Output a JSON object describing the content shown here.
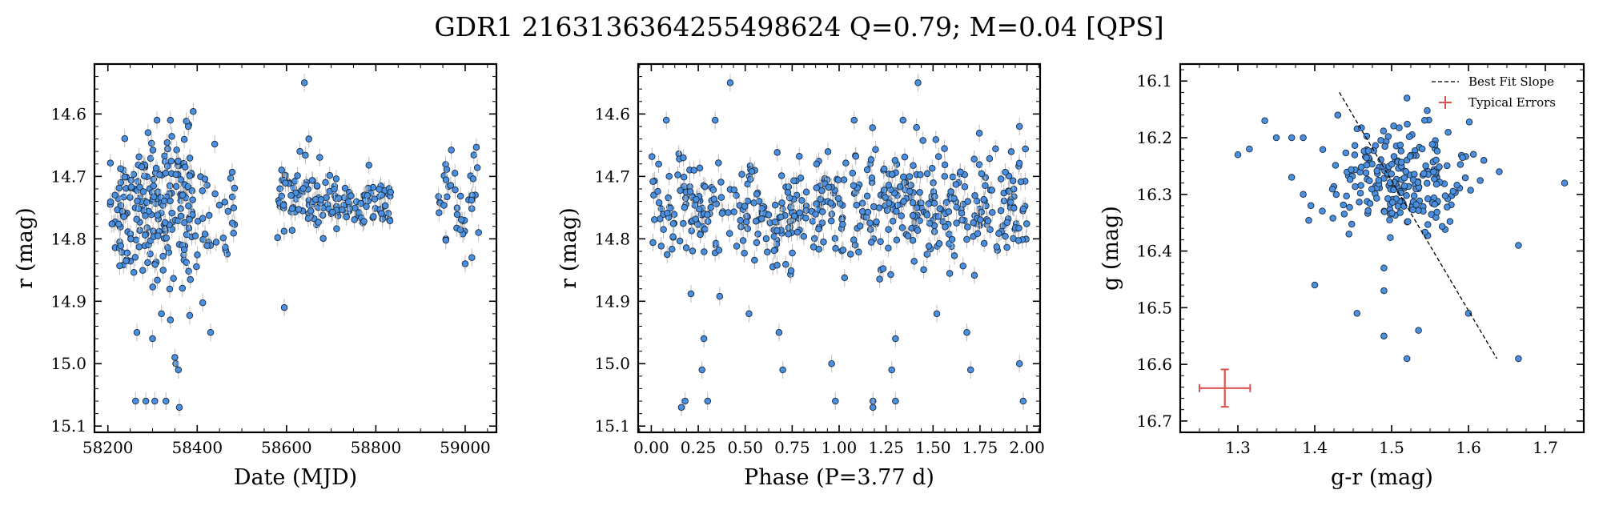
{
  "figure_title": "GDR1 2163136364255498624  Q=0.79; M=0.04 [QPS]",
  "colors": {
    "point": "#4a90e2",
    "point_edge": "#1b2a3a",
    "errorbar": "#bbbbbb",
    "typical_error": "#d9534f",
    "slope": "#000000"
  },
  "chart_data": [
    {
      "type": "scatter",
      "xlabel": "Date (MJD)",
      "ylabel": "r (mag)",
      "xlim": [
        58170,
        59070
      ],
      "ylim": [
        15.11,
        14.52
      ],
      "y_inverted": true,
      "xticks": [
        58200,
        58400,
        58600,
        58800,
        59000
      ],
      "yticks": [
        14.6,
        14.7,
        14.8,
        14.9,
        15.0,
        15.1
      ],
      "groups": [
        {
          "x_range": [
            58205,
            58300
          ],
          "y_center": 14.76,
          "y_spread": 0.05,
          "count": 95
        },
        {
          "x_range": [
            58300,
            58390
          ],
          "y_center": 14.75,
          "y_spread": 0.06,
          "count": 120
        },
        {
          "x_range": [
            58390,
            58490
          ],
          "y_center": 14.77,
          "y_spread": 0.05,
          "count": 35
        },
        {
          "x_range": [
            58580,
            58700
          ],
          "y_center": 14.73,
          "y_spread": 0.025,
          "count": 70
        },
        {
          "x_range": [
            58700,
            58840
          ],
          "y_center": 14.74,
          "y_spread": 0.02,
          "count": 70
        },
        {
          "x_range": [
            58940,
            59030
          ],
          "y_center": 14.73,
          "y_spread": 0.03,
          "count": 40
        }
      ],
      "outliers": [
        [
          58262,
          15.06
        ],
        [
          58285,
          15.06
        ],
        [
          58305,
          15.06
        ],
        [
          58330,
          15.06
        ],
        [
          58352,
          15.0
        ],
        [
          58358,
          15.01
        ],
        [
          58360,
          15.07
        ],
        [
          58350,
          14.99
        ],
        [
          58300,
          14.96
        ],
        [
          58265,
          14.95
        ],
        [
          58320,
          14.92
        ],
        [
          58340,
          14.93
        ],
        [
          58430,
          14.95
        ],
        [
          58595,
          14.91
        ],
        [
          58640,
          14.55
        ],
        [
          58650,
          14.64
        ],
        [
          58630,
          14.66
        ],
        [
          58290,
          14.63
        ],
        [
          58310,
          14.61
        ],
        [
          58340,
          14.61
        ],
        [
          58380,
          14.62
        ],
        [
          59000,
          14.84
        ],
        [
          59015,
          14.83
        ],
        [
          59030,
          14.79
        ]
      ]
    },
    {
      "type": "scatter",
      "xlabel": "Phase (P=3.77 d)",
      "ylabel": "r (mag)",
      "xlim": [
        -0.07,
        2.07
      ],
      "ylim": [
        15.11,
        14.52
      ],
      "y_inverted": true,
      "xticks": [
        0.0,
        0.25,
        0.5,
        0.75,
        1.0,
        1.25,
        1.5,
        1.75,
        2.0
      ],
      "xtick_labels": [
        "0.00",
        "0.25",
        "0.50",
        "0.75",
        "1.00",
        "1.25",
        "1.50",
        "1.75",
        "2.00"
      ],
      "yticks": [
        14.6,
        14.7,
        14.8,
        14.9,
        15.0,
        15.1
      ],
      "band": {
        "x_range": [
          0.0,
          2.0
        ],
        "y_center": 14.75,
        "y_spread": 0.045,
        "count": 520
      },
      "outliers": [
        [
          0.18,
          15.06
        ],
        [
          0.16,
          15.07
        ],
        [
          0.3,
          15.06
        ],
        [
          0.27,
          15.01
        ],
        [
          0.7,
          15.01
        ],
        [
          0.98,
          15.06
        ],
        [
          0.96,
          15.0
        ],
        [
          1.18,
          15.06
        ],
        [
          1.18,
          15.07
        ],
        [
          1.3,
          15.06
        ],
        [
          1.28,
          15.01
        ],
        [
          1.7,
          15.01
        ],
        [
          1.96,
          15.0
        ],
        [
          1.98,
          15.06
        ],
        [
          0.42,
          14.55
        ],
        [
          1.42,
          14.55
        ],
        [
          0.08,
          14.61
        ],
        [
          0.34,
          14.61
        ],
        [
          1.08,
          14.61
        ],
        [
          1.34,
          14.61
        ],
        [
          1.96,
          14.62
        ],
        [
          0.28,
          14.96
        ],
        [
          1.3,
          14.96
        ],
        [
          0.52,
          14.92
        ],
        [
          1.52,
          14.92
        ],
        [
          0.68,
          14.95
        ],
        [
          1.68,
          14.95
        ]
      ]
    },
    {
      "type": "scatter",
      "xlabel": "g-r (mag)",
      "ylabel": "g (mag)",
      "xlim": [
        1.225,
        1.75
      ],
      "ylim": [
        16.72,
        16.07
      ],
      "y_inverted": true,
      "xticks": [
        1.3,
        1.4,
        1.5,
        1.6,
        1.7
      ],
      "yticks": [
        16.1,
        16.2,
        16.3,
        16.4,
        16.5,
        16.6,
        16.7
      ],
      "cluster": {
        "x_center": 1.51,
        "y_center": 16.27,
        "x_spread": 0.045,
        "y_spread": 0.045,
        "count": 230
      },
      "outliers": [
        [
          1.3,
          16.23
        ],
        [
          1.315,
          16.22
        ],
        [
          1.335,
          16.17
        ],
        [
          1.35,
          16.2
        ],
        [
          1.37,
          16.2
        ],
        [
          1.385,
          16.2
        ],
        [
          1.37,
          16.27
        ],
        [
          1.385,
          16.3
        ],
        [
          1.395,
          16.32
        ],
        [
          1.4,
          16.46
        ],
        [
          1.455,
          16.51
        ],
        [
          1.49,
          16.43
        ],
        [
          1.49,
          16.47
        ],
        [
          1.49,
          16.55
        ],
        [
          1.52,
          16.59
        ],
        [
          1.535,
          16.54
        ],
        [
          1.6,
          16.51
        ],
        [
          1.665,
          16.39
        ],
        [
          1.665,
          16.59
        ],
        [
          1.725,
          16.28
        ],
        [
          1.52,
          16.13
        ],
        [
          1.43,
          16.16
        ],
        [
          1.62,
          16.24
        ],
        [
          1.64,
          16.26
        ]
      ],
      "best_fit_slope": {
        "x": [
          1.432,
          1.637
        ],
        "y": [
          16.12,
          16.59
        ]
      },
      "typical_errors": {
        "x": 1.283,
        "y": 16.642,
        "xerr": 0.033,
        "yerr": 0.033
      },
      "legend": {
        "position": "upper-right",
        "entries": [
          "Best Fit Slope",
          "Typical Errors"
        ]
      }
    }
  ]
}
